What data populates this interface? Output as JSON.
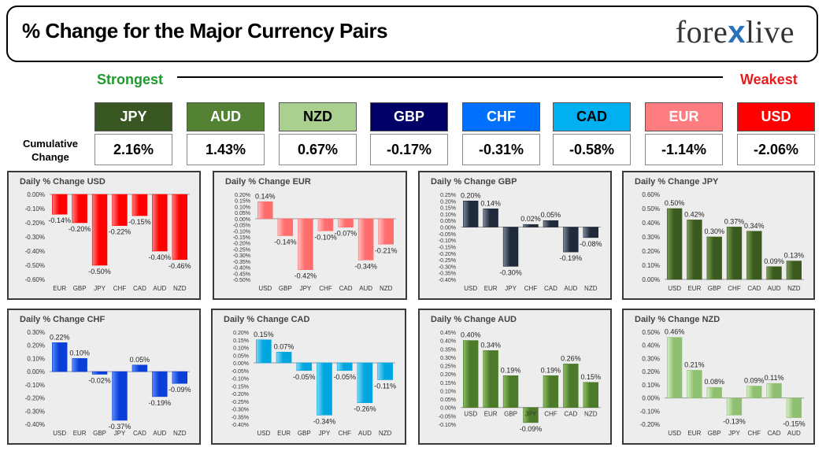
{
  "header": {
    "title": "% Change for the Major Currency Pairs",
    "logo_text_a": "fore",
    "logo_text_x": "x",
    "logo_text_b": "live"
  },
  "scale": {
    "strongest_label": "Strongest",
    "weakest_label": "Weakest",
    "cumulative_label_1": "Cumulative",
    "cumulative_label_2": "Change"
  },
  "currencies": [
    {
      "code": "JPY",
      "value": "2.16%",
      "bg": "#385723",
      "fg": "#ffffff"
    },
    {
      "code": "AUD",
      "value": "1.43%",
      "bg": "#548235",
      "fg": "#ffffff"
    },
    {
      "code": "NZD",
      "value": "0.67%",
      "bg": "#a9d08e",
      "fg": "#000000"
    },
    {
      "code": "GBP",
      "value": "-0.17%",
      "bg": "#000066",
      "fg": "#ffffff"
    },
    {
      "code": "CHF",
      "value": "-0.31%",
      "bg": "#0070ff",
      "fg": "#ffffff"
    },
    {
      "code": "CAD",
      "value": "-0.58%",
      "bg": "#00b0f0",
      "fg": "#000000"
    },
    {
      "code": "EUR",
      "value": "-1.14%",
      "bg": "#ff7c80",
      "fg": "#ffffff"
    },
    {
      "code": "USD",
      "value": "-2.06%",
      "bg": "#ff0000",
      "fg": "#ffffff"
    }
  ],
  "chart_data": [
    {
      "type": "bar",
      "title": "Daily % Change USD",
      "categories": [
        "EUR",
        "GBP",
        "JPY",
        "CHF",
        "CAD",
        "AUD",
        "NZD"
      ],
      "values": [
        -0.14,
        -0.2,
        -0.5,
        -0.22,
        -0.15,
        -0.4,
        -0.46
      ],
      "labels": [
        "-0.14%",
        "-0.20%",
        "-0.50%",
        "-0.22%",
        "-0.15%",
        "-0.40%",
        "-0.46%"
      ],
      "ylim": [
        -0.6,
        0.0
      ],
      "ticks": [
        0.0,
        -0.1,
        -0.2,
        -0.3,
        -0.4,
        -0.5,
        -0.6
      ],
      "tick_labels": [
        "0.00%",
        "-0.10%",
        "-0.20%",
        "-0.30%",
        "-0.40%",
        "-0.50%",
        "-0.60%"
      ],
      "color": "#ff0000",
      "color_light": "#ff8080",
      "xaxis_at_bottom": true
    },
    {
      "type": "bar",
      "title": "Daily % Change EUR",
      "categories": [
        "USD",
        "GBP",
        "JPY",
        "CHF",
        "CAD",
        "AUD",
        "NZD"
      ],
      "values": [
        0.14,
        -0.14,
        -0.42,
        -0.1,
        -0.07,
        -0.34,
        -0.21
      ],
      "labels": [
        "0.14%",
        "-0.14%",
        "-0.42%",
        "-0.10%",
        "-0.07%",
        "-0.34%",
        "-0.21%"
      ],
      "ylim": [
        -0.5,
        0.2
      ],
      "ticks": [
        0.2,
        0.15,
        0.1,
        0.05,
        0.0,
        -0.05,
        -0.1,
        -0.15,
        -0.2,
        -0.25,
        -0.3,
        -0.35,
        -0.4,
        -0.45,
        -0.5
      ],
      "tick_labels": [
        "0.20%",
        "0.15%",
        "0.10%",
        "0.05%",
        "0.00%",
        "-0.05%",
        "-0.10%",
        "-0.15%",
        "-0.20%",
        "-0.25%",
        "-0.30%",
        "-0.35%",
        "-0.40%",
        "-0.45%",
        "-0.50%"
      ],
      "color": "#ff6d6d",
      "color_light": "#ffc0c0",
      "xaxis_at_bottom": true
    },
    {
      "type": "bar",
      "title": "Daily % Change GBP",
      "categories": [
        "USD",
        "EUR",
        "JPY",
        "CHF",
        "CAD",
        "AUD",
        "NZD"
      ],
      "values": [
        0.2,
        0.14,
        -0.3,
        0.02,
        0.05,
        -0.19,
        -0.08
      ],
      "labels": [
        "0.20%",
        "0.14%",
        "-0.30%",
        "0.02%",
        "0.05%",
        "-0.19%",
        "-0.08%"
      ],
      "ylim": [
        -0.4,
        0.25
      ],
      "ticks": [
        0.25,
        0.2,
        0.15,
        0.1,
        0.05,
        0.0,
        -0.05,
        -0.1,
        -0.15,
        -0.2,
        -0.25,
        -0.3,
        -0.35,
        -0.4
      ],
      "tick_labels": [
        "0.25%",
        "0.20%",
        "0.15%",
        "0.10%",
        "0.05%",
        "0.00%",
        "-0.05%",
        "-0.10%",
        "-0.15%",
        "-0.20%",
        "-0.25%",
        "-0.30%",
        "-0.35%",
        "-0.40%"
      ],
      "color": "#1f2a3a",
      "color_light": "#7d8a99",
      "xaxis_at_bottom": true
    },
    {
      "type": "bar",
      "title": "Daily % Change JPY",
      "categories": [
        "USD",
        "EUR",
        "GBP",
        "CHF",
        "CAD",
        "AUD",
        "NZD"
      ],
      "values": [
        0.5,
        0.42,
        0.3,
        0.37,
        0.34,
        0.09,
        0.13
      ],
      "labels": [
        "0.50%",
        "0.42%",
        "0.30%",
        "0.37%",
        "0.34%",
        "0.09%",
        "0.13%"
      ],
      "ylim": [
        0.0,
        0.6
      ],
      "ticks": [
        0.6,
        0.5,
        0.4,
        0.3,
        0.2,
        0.1,
        0.0
      ],
      "tick_labels": [
        "0.60%",
        "0.50%",
        "0.40%",
        "0.30%",
        "0.20%",
        "0.10%",
        "0.00%"
      ],
      "color": "#3a5a1f",
      "color_light": "#7a9c55",
      "xaxis_at_bottom": true
    },
    {
      "type": "bar",
      "title": "Daily % Change CHF",
      "categories": [
        "USD",
        "EUR",
        "GBP",
        "JPY",
        "CAD",
        "AUD",
        "NZD"
      ],
      "values": [
        0.22,
        0.1,
        -0.02,
        -0.37,
        0.05,
        -0.19,
        -0.09
      ],
      "labels": [
        "0.22%",
        "0.10%",
        "-0.02%",
        "-0.37%",
        "0.05%",
        "-0.19%",
        "-0.09%"
      ],
      "ylim": [
        -0.4,
        0.3
      ],
      "ticks": [
        0.3,
        0.2,
        0.1,
        0.0,
        -0.1,
        -0.2,
        -0.3,
        -0.4
      ],
      "tick_labels": [
        "0.30%",
        "0.20%",
        "0.10%",
        "0.00%",
        "-0.10%",
        "-0.20%",
        "-0.30%",
        "-0.40%"
      ],
      "color": "#0a3fd8",
      "color_light": "#5a8cff",
      "xaxis_at_bottom": true
    },
    {
      "type": "bar",
      "title": "Daily % Change CAD",
      "categories": [
        "USD",
        "EUR",
        "GBP",
        "JPY",
        "CHF",
        "AUD",
        "NZD"
      ],
      "values": [
        0.15,
        0.07,
        -0.05,
        -0.34,
        -0.05,
        -0.26,
        -0.11
      ],
      "labels": [
        "0.15%",
        "0.07%",
        "-0.05%",
        "-0.34%",
        "-0.05%",
        "-0.26%",
        "-0.11%"
      ],
      "ylim": [
        -0.4,
        0.2
      ],
      "ticks": [
        0.2,
        0.15,
        0.1,
        0.05,
        0.0,
        -0.05,
        -0.1,
        -0.15,
        -0.2,
        -0.25,
        -0.3,
        -0.35,
        -0.4
      ],
      "tick_labels": [
        "0.20%",
        "0.15%",
        "0.10%",
        "0.05%",
        "0.00%",
        "-0.05%",
        "-0.10%",
        "-0.15%",
        "-0.20%",
        "-0.25%",
        "-0.30%",
        "-0.35%",
        "-0.40%"
      ],
      "color": "#00a6e0",
      "color_light": "#7fd8f8",
      "xaxis_at_bottom": true
    },
    {
      "type": "bar",
      "title": "Daily % Change AUD",
      "categories": [
        "USD",
        "EUR",
        "GBP",
        "JPY",
        "CHF",
        "CAD",
        "NZD"
      ],
      "values": [
        0.4,
        0.34,
        0.19,
        -0.09,
        0.19,
        0.26,
        0.15
      ],
      "labels": [
        "0.40%",
        "0.34%",
        "0.19%",
        "-0.09%",
        "0.19%",
        "0.26%",
        "0.15%"
      ],
      "ylim": [
        -0.1,
        0.45
      ],
      "ticks": [
        0.45,
        0.4,
        0.35,
        0.3,
        0.25,
        0.2,
        0.15,
        0.1,
        0.05,
        0.0,
        -0.05,
        -0.1
      ],
      "tick_labels": [
        "0.45%",
        "0.40%",
        "0.35%",
        "0.30%",
        "0.25%",
        "0.20%",
        "0.15%",
        "0.10%",
        "0.05%",
        "0.00%",
        "-0.05%",
        "-0.10%"
      ],
      "color": "#4a7a2a",
      "color_light": "#8fbf60",
      "xaxis_at_bottom": false
    },
    {
      "type": "bar",
      "title": "Daily % Change NZD",
      "categories": [
        "USD",
        "EUR",
        "GBP",
        "JPY",
        "CHF",
        "CAD",
        "AUD"
      ],
      "values": [
        0.46,
        0.21,
        0.08,
        -0.13,
        0.09,
        0.11,
        -0.15
      ],
      "labels": [
        "0.46%",
        "0.21%",
        "0.08%",
        "-0.13%",
        "0.09%",
        "0.11%",
        "-0.15%"
      ],
      "ylim": [
        -0.2,
        0.5
      ],
      "ticks": [
        0.5,
        0.4,
        0.3,
        0.2,
        0.1,
        0.0,
        -0.1,
        -0.2
      ],
      "tick_labels": [
        "0.50%",
        "0.40%",
        "0.30%",
        "0.20%",
        "0.10%",
        "0.00%",
        "-0.10%",
        "-0.20%"
      ],
      "color": "#8fbf70",
      "color_light": "#d8efc8",
      "xaxis_at_bottom": true
    }
  ]
}
